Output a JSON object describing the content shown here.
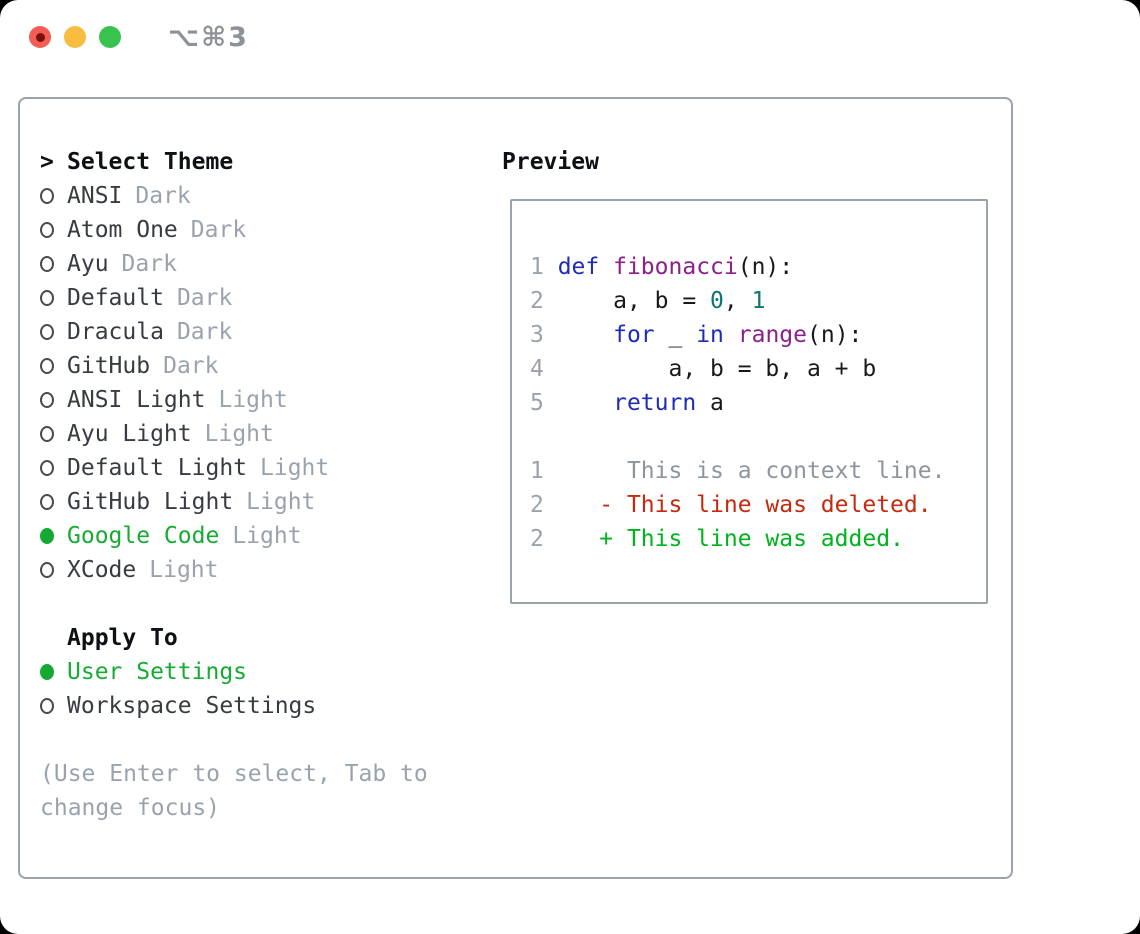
{
  "window": {
    "shortcut": "⌥⌘3"
  },
  "colors": {
    "ui_selected_green": "#17ab33",
    "bullet_green": "#16a834",
    "muted_gray": "#9aa3ad",
    "border_gray": "#9aa2ab",
    "keyword_blue": "#1f2cb8",
    "function_purple": "#8b1f8b",
    "number_teal": "#0e7474",
    "diff_deleted_red": "#c32a0e",
    "diff_added_green": "#00b31c",
    "traffic_red": "#f45d55",
    "traffic_yellow": "#f6bd40",
    "traffic_green": "#3ac24e"
  },
  "theme_panel": {
    "prompt": ">",
    "title": "Select Theme",
    "items": [
      {
        "name": "ANSI",
        "variant": "Dark",
        "selected": false
      },
      {
        "name": "Atom One",
        "variant": "Dark",
        "selected": false
      },
      {
        "name": "Ayu",
        "variant": "Dark",
        "selected": false
      },
      {
        "name": "Default",
        "variant": "Dark",
        "selected": false
      },
      {
        "name": "Dracula",
        "variant": "Dark",
        "selected": false
      },
      {
        "name": "GitHub",
        "variant": "Dark",
        "selected": false
      },
      {
        "name": "ANSI Light",
        "variant": "Light",
        "selected": false
      },
      {
        "name": "Ayu Light",
        "variant": "Light",
        "selected": false
      },
      {
        "name": "Default Light",
        "variant": "Light",
        "selected": false
      },
      {
        "name": "GitHub Light",
        "variant": "Light",
        "selected": false
      },
      {
        "name": "Google Code",
        "variant": "Light",
        "selected": true
      },
      {
        "name": "XCode",
        "variant": "Light",
        "selected": false
      }
    ],
    "apply_to": {
      "title": "Apply To",
      "options": [
        {
          "label": "User Settings",
          "selected": true
        },
        {
          "label": "Workspace Settings",
          "selected": false
        }
      ]
    },
    "hint": "(Use Enter to select, Tab to\nchange focus)"
  },
  "preview": {
    "title": "Preview",
    "code_lines": [
      {
        "number": "1",
        "tokens": [
          {
            "t": "def",
            "c": "k"
          },
          {
            "t": " ",
            "c": "p"
          },
          {
            "t": "fibonacci",
            "c": "f"
          },
          {
            "t": "(n):",
            "c": "p"
          }
        ]
      },
      {
        "number": "2",
        "tokens": [
          {
            "t": "    a, b = ",
            "c": "p"
          },
          {
            "t": "0",
            "c": "n"
          },
          {
            "t": ", ",
            "c": "p"
          },
          {
            "t": "1",
            "c": "n"
          }
        ]
      },
      {
        "number": "3",
        "tokens": [
          {
            "t": "    ",
            "c": "p"
          },
          {
            "t": "for",
            "c": "k"
          },
          {
            "t": " _ ",
            "c": "p"
          },
          {
            "t": "in",
            "c": "k"
          },
          {
            "t": " ",
            "c": "p"
          },
          {
            "t": "range",
            "c": "f"
          },
          {
            "t": "(n):",
            "c": "p"
          }
        ]
      },
      {
        "number": "4",
        "tokens": [
          {
            "t": "        a, b = b, a + b",
            "c": "p"
          }
        ]
      },
      {
        "number": "5",
        "tokens": [
          {
            "t": "    ",
            "c": "p"
          },
          {
            "t": "return",
            "c": "k"
          },
          {
            "t": " a",
            "c": "p"
          }
        ]
      }
    ],
    "diff_lines": [
      {
        "number": "1",
        "marker": " ",
        "text": "This is a context line.",
        "type": "context"
      },
      {
        "number": "2",
        "marker": "-",
        "text": "This line was deleted.",
        "type": "deleted"
      },
      {
        "number": "2",
        "marker": "+",
        "text": "This line was added.",
        "type": "added"
      }
    ]
  }
}
